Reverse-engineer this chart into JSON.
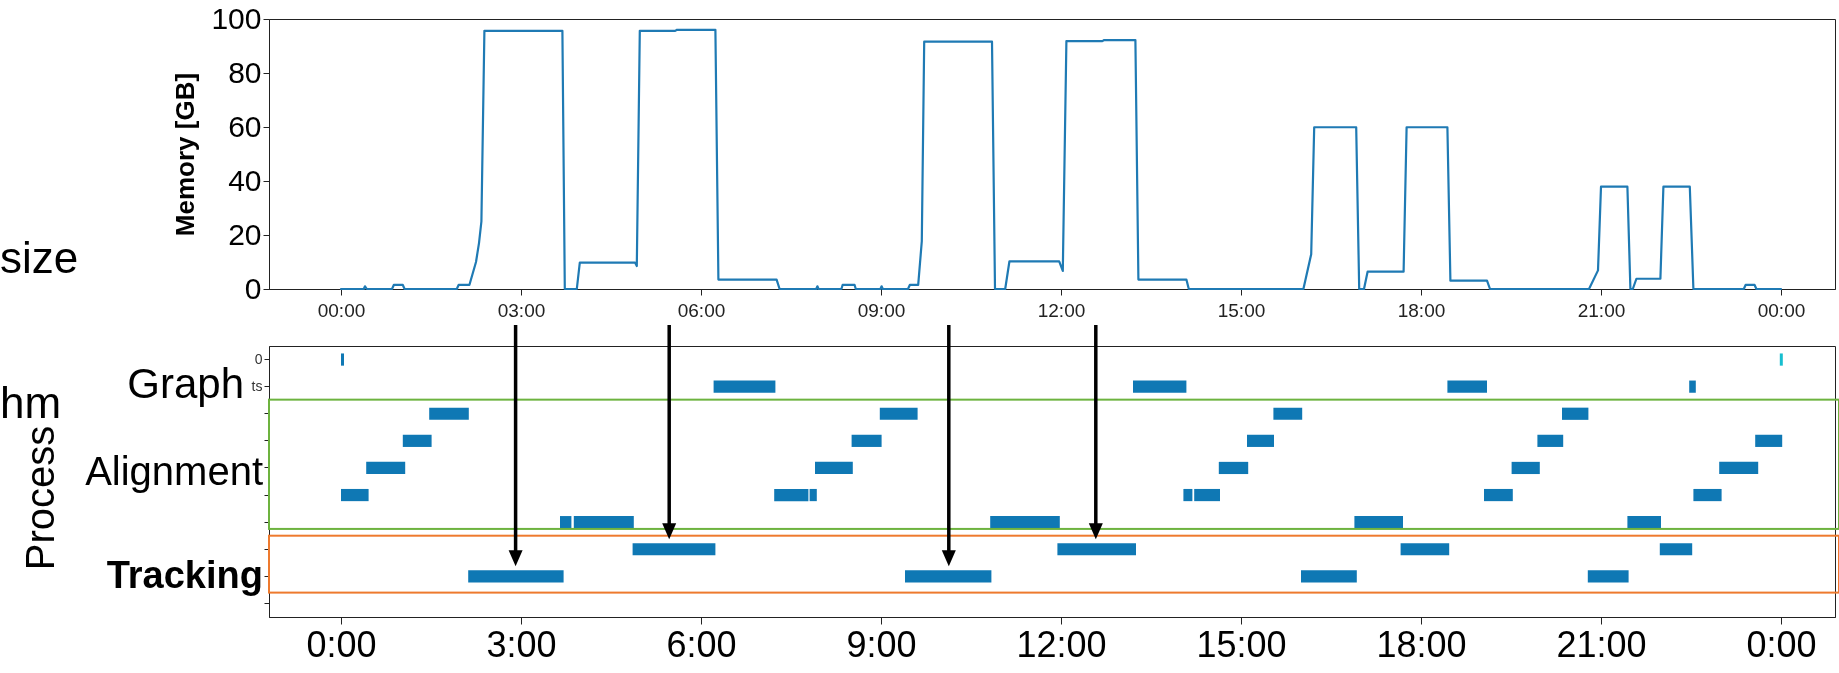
{
  "chart_data": [
    {
      "type": "line",
      "ylabel": "Memory [GB]",
      "annotations": [
        "size"
      ],
      "x": [
        0,
        0.38,
        0.4,
        0.43,
        0.85,
        0.88,
        1.03,
        1.06,
        1.93,
        1.96,
        2.14,
        2.25,
        2.3,
        2.34,
        2.39,
        3.69,
        3.73,
        3.93,
        3.98,
        4.9,
        4.93,
        4.98,
        5.57,
        5.6,
        6.24,
        6.29,
        7.26,
        7.31,
        7.92,
        7.94,
        7.96,
        8.34,
        8.36,
        8.56,
        8.58,
        8.99,
        9.01,
        9.03,
        9.45,
        9.48,
        9.62,
        9.68,
        9.72,
        10.85,
        10.9,
        11.07,
        11.14,
        11.97,
        12.03,
        12.09,
        12.69,
        12.72,
        13.24,
        13.29,
        14.09,
        14.13,
        16.04,
        16.17,
        16.22,
        16.92,
        16.97,
        17.05,
        17.11,
        17.71,
        17.76,
        18.44,
        18.49,
        19.1,
        19.15,
        20.8,
        20.95,
        21.0,
        21.44,
        21.49,
        21.53,
        21.59,
        21.99,
        22.04,
        22.48,
        22.54,
        23.38,
        23.41,
        23.56,
        23.59,
        24.0
      ],
      "series": [
        {
          "color": "#1f7ab4",
          "values": [
            0,
            0,
            1,
            0,
            0,
            1.5,
            1.5,
            0,
            0,
            1.5,
            1.5,
            10,
            17,
            25,
            95.6,
            95.6,
            0,
            0,
            9.8,
            9.8,
            8.5,
            95.6,
            95.6,
            96,
            96,
            3.5,
            3.5,
            0,
            0,
            1,
            0,
            0,
            1.5,
            1.5,
            0,
            0,
            1,
            0,
            0,
            1.5,
            1.5,
            17.7,
            91.6,
            91.6,
            0,
            0,
            10.2,
            10.2,
            6.7,
            91.8,
            91.8,
            92.2,
            92.2,
            3.5,
            3.5,
            0,
            0,
            12.9,
            59.9,
            59.9,
            0,
            0,
            6.4,
            6.4,
            59.9,
            59.9,
            3.1,
            3.1,
            0,
            0,
            6.9,
            37.9,
            37.9,
            0,
            0,
            3.8,
            3.8,
            37.9,
            37.9,
            0,
            0,
            1.5,
            1.5,
            0,
            0
          ]
        }
      ],
      "xlim": [
        -1.2,
        24.9
      ],
      "xticks": [
        {
          "value": 0,
          "label": "00:00"
        },
        {
          "value": 3,
          "label": "03:00"
        },
        {
          "value": 6,
          "label": "06:00"
        },
        {
          "value": 9,
          "label": "09:00"
        },
        {
          "value": 12,
          "label": "12:00"
        },
        {
          "value": 15,
          "label": "15:00"
        },
        {
          "value": 18,
          "label": "18:00"
        },
        {
          "value": 21,
          "label": "21:00"
        },
        {
          "value": 24,
          "label": "00:00"
        }
      ],
      "ylim": [
        0,
        100
      ],
      "yticks": [
        0,
        20,
        40,
        60,
        80,
        100
      ]
    },
    {
      "type": "bar",
      "orientation": "horizontal",
      "ylabel": "Process",
      "annotations": [
        "hm",
        "Graph",
        "Alignment",
        "Tracking"
      ],
      "categories": [
        "0",
        "ts",
        null,
        null,
        null,
        null,
        null,
        null,
        null,
        null
      ],
      "series": [
        {
          "color": "#0f78b4",
          "base": [
            0,
            6.21,
            1.47,
            1.03,
            0.42,
            0,
            3.65,
            4.86,
            2.12,
            null
          ],
          "values": [
            0.05,
            1.03,
            0.66,
            0.48,
            0.65,
            0.46,
            0.19,
            1.38,
            1.59,
            null
          ]
        },
        {
          "color": "#0f78b4",
          "base": [
            null,
            13.2,
            8.98,
            8.51,
            7.9,
            7.22,
            3.88,
            11.94,
            9.4,
            null
          ],
          "values": [
            null,
            0.89,
            0.63,
            0.5,
            0.63,
            0.57,
            1.0,
            1.31,
            1.44,
            null
          ]
        },
        {
          "color": "#0f78b4",
          "base": [
            null,
            18.44,
            15.54,
            15.1,
            14.63,
            7.81,
            10.82,
            17.66,
            16.0,
            null
          ],
          "values": [
            null,
            0.66,
            0.48,
            0.45,
            0.49,
            0.12,
            1.16,
            0.81,
            0.93,
            null
          ]
        },
        {
          "color": "#0f78b4",
          "base": [
            null,
            22.47,
            20.35,
            19.94,
            19.51,
            14.04,
            16.89,
            21.98,
            20.78,
            null
          ],
          "values": [
            null,
            0.11,
            0.44,
            0.43,
            0.47,
            0.15,
            0.81,
            0.54,
            0.68,
            null
          ]
        },
        {
          "color": "#0f78b4",
          "base": [
            null,
            null,
            null,
            23.57,
            22.97,
            14.22,
            21.44,
            null,
            null,
            null
          ],
          "values": [
            null,
            null,
            null,
            0.45,
            0.65,
            0.43,
            0.56,
            null,
            null,
            null
          ]
        },
        {
          "color": "#0f78b4",
          "base": [
            null,
            null,
            null,
            null,
            null,
            19.05,
            null,
            null,
            null,
            null
          ],
          "values": [
            null,
            null,
            null,
            null,
            null,
            0.48,
            null,
            null,
            null,
            null
          ]
        },
        {
          "color": "#0f78b4",
          "base": [
            null,
            null,
            null,
            null,
            null,
            22.54,
            null,
            null,
            null,
            null
          ],
          "values": [
            null,
            null,
            null,
            null,
            null,
            0.47,
            null,
            null,
            null,
            null
          ]
        },
        {
          "color": "#17becf",
          "base": [
            23.98,
            null,
            null,
            null,
            null,
            null,
            null,
            null,
            null,
            null
          ],
          "values": [
            0.05,
            null,
            null,
            null,
            null,
            null,
            null,
            null,
            null,
            null
          ]
        }
      ],
      "xlim": [
        -1.2,
        24.9
      ],
      "xticks": [
        {
          "value": 0,
          "label": "0:00"
        },
        {
          "value": 3,
          "label": "3:00"
        },
        {
          "value": 6,
          "label": "6:00"
        },
        {
          "value": 9,
          "label": "9:00"
        },
        {
          "value": 12,
          "label": "12:00"
        },
        {
          "value": 15,
          "label": "15:00"
        },
        {
          "value": 18,
          "label": "18:00"
        },
        {
          "value": 21,
          "label": "21:00"
        },
        {
          "value": 24,
          "label": "0:00"
        }
      ]
    }
  ]
}
